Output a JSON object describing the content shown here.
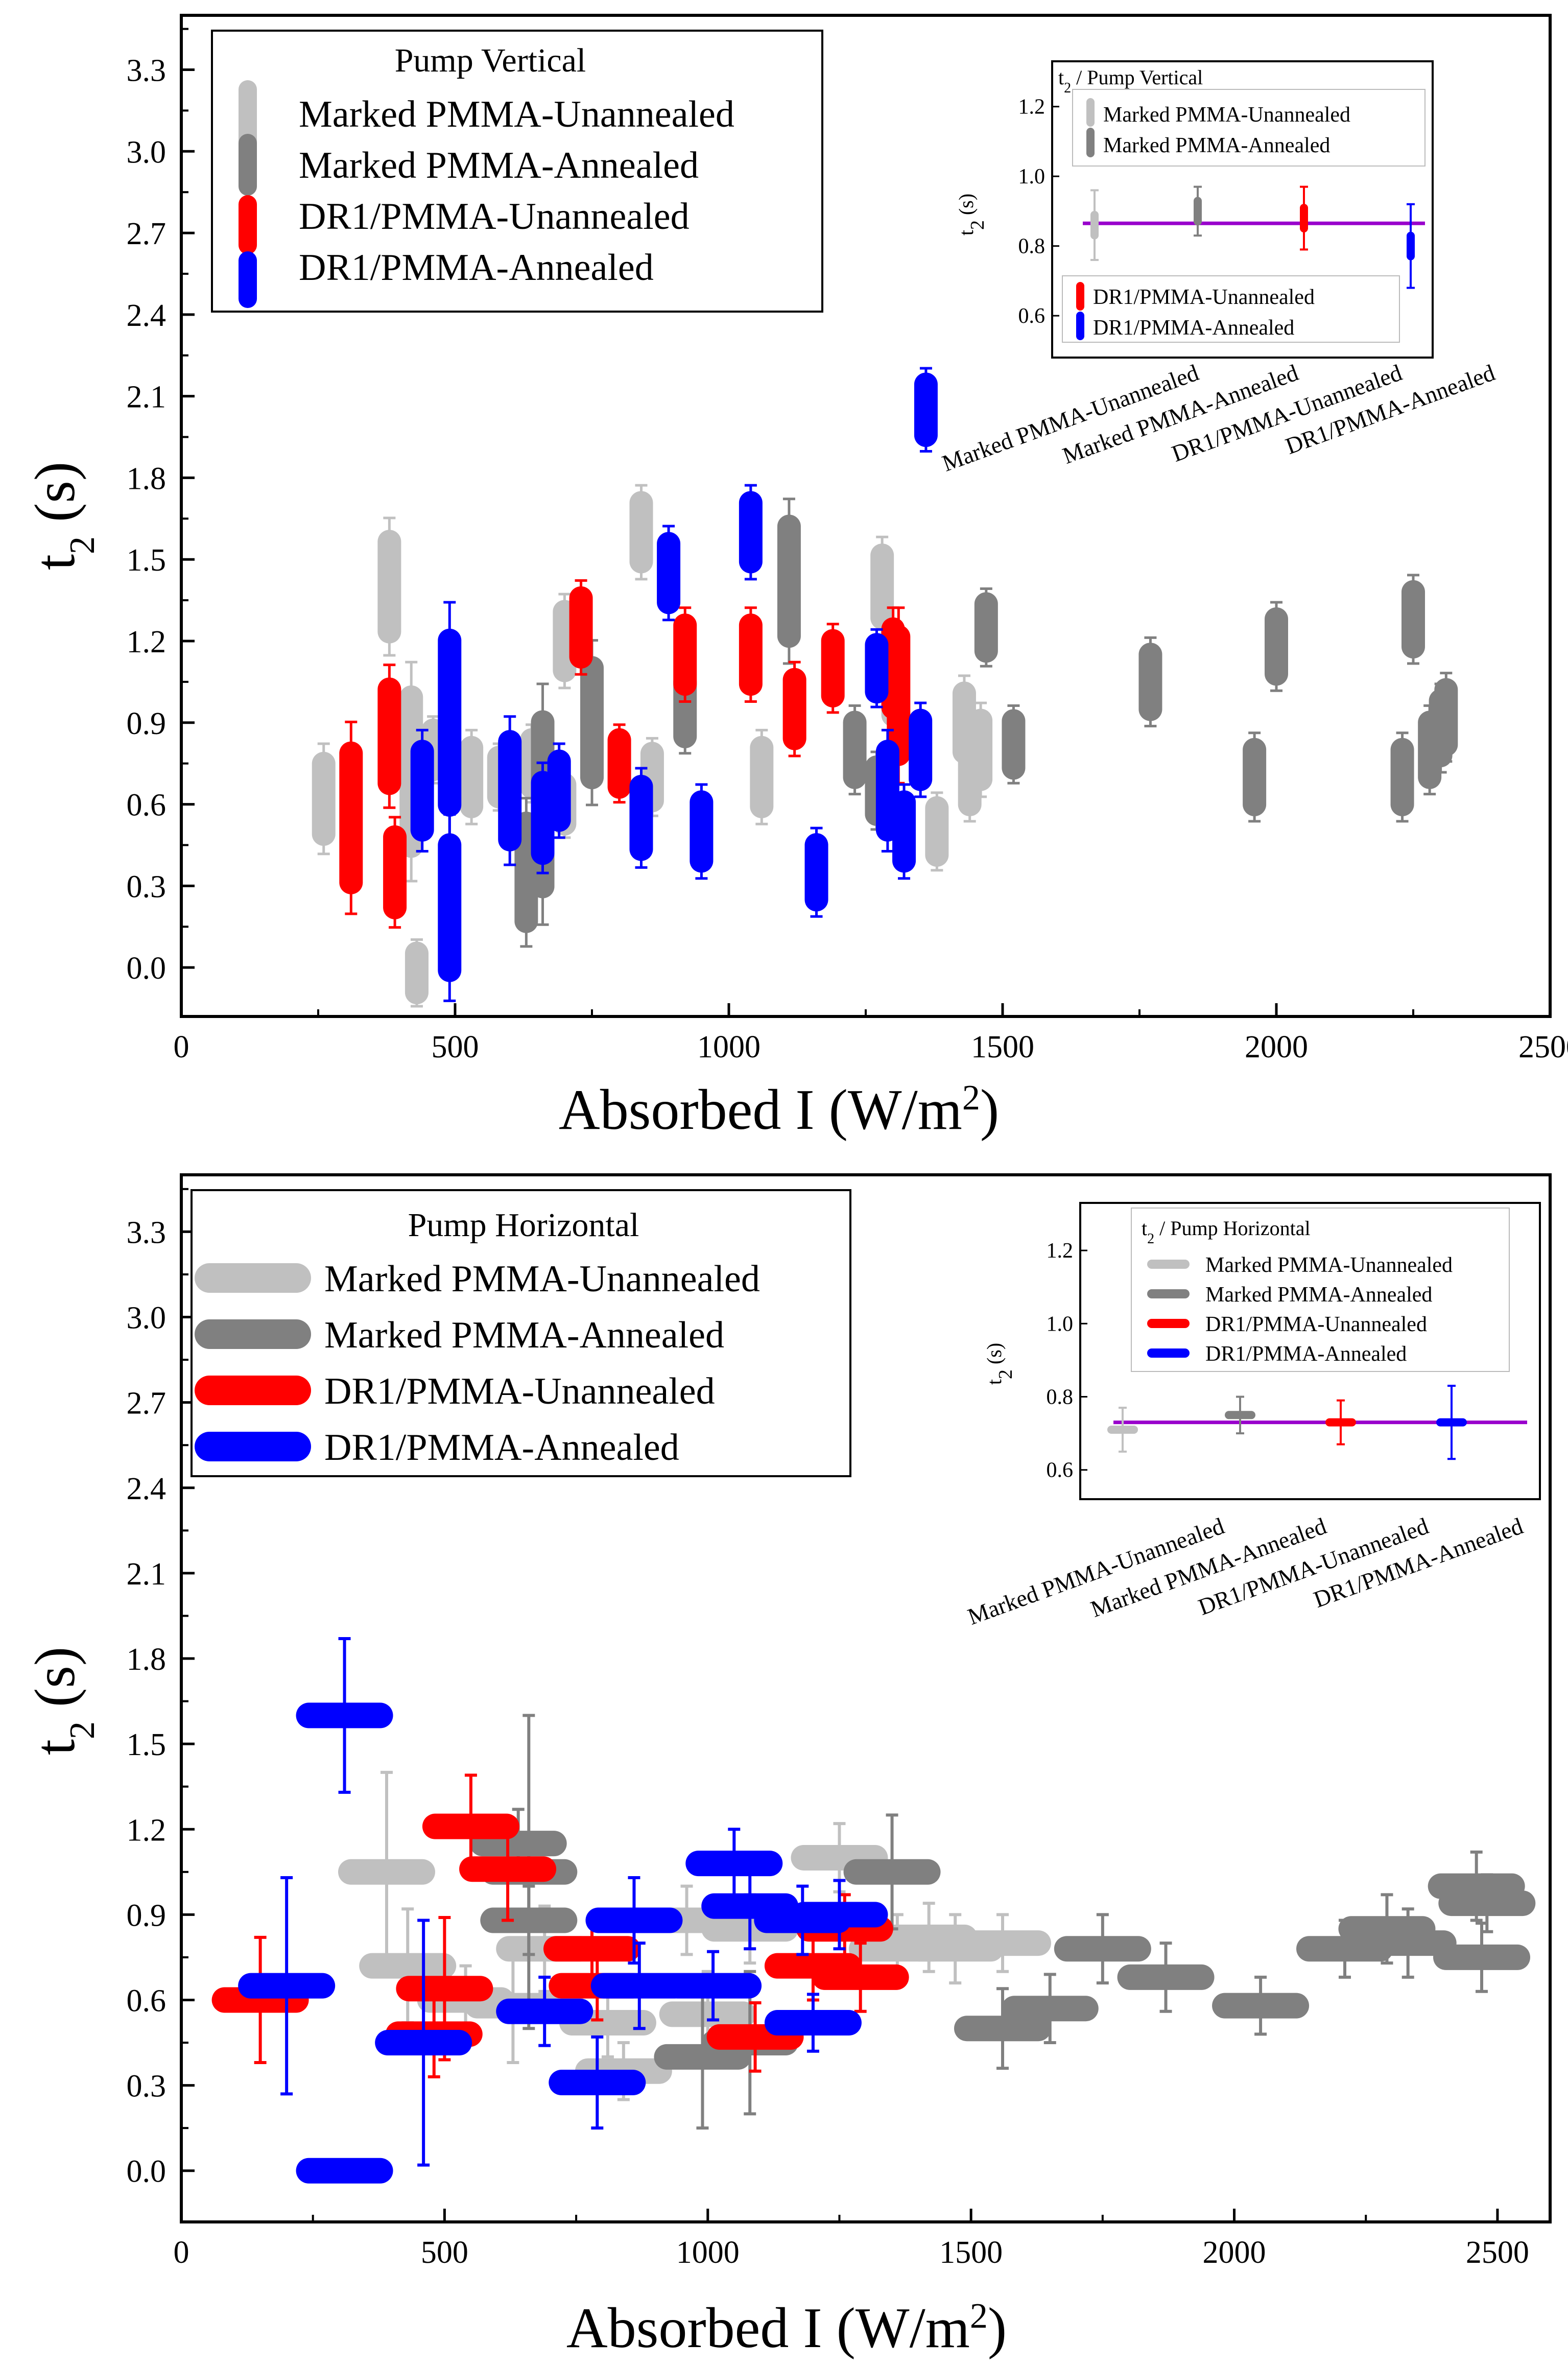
{
  "colors": {
    "light_gray": "#c0c0c0",
    "dark_gray": "#808080",
    "red": "#ff0000",
    "blue": "#0000ff",
    "fit_line": "#9900cc",
    "axis": "#000000"
  },
  "chart_data": [
    {
      "id": "top",
      "type": "scatter",
      "marker": "vertical-bar",
      "xlabel_main": "Absorbed I (W/m",
      "xlabel_sup": "2",
      "xlabel_end": ")",
      "ylabel_main": "t",
      "ylabel_sub": "2",
      "ylabel_end": " (s)",
      "xlim": [
        0,
        2500
      ],
      "ylim": [
        -0.18,
        3.5
      ],
      "xticks": [
        "0",
        "500",
        "1000",
        "1500",
        "2000",
        "2500"
      ],
      "yticks": [
        "0.0",
        "0.3",
        "0.6",
        "0.9",
        "1.2",
        "1.5",
        "1.8",
        "2.1",
        "2.4",
        "2.7",
        "3.0",
        "3.3"
      ],
      "legend": {
        "title": "Pump Vertical",
        "entries": [
          "Marked PMMA-Unannealed",
          "Marked PMMA-Annealed",
          "DR1/PMMA-Unannealed",
          "DR1/PMMA-Annealed"
        ]
      },
      "series": [
        {
          "name": "Marked PMMA-Unannealed",
          "color": "#c0c0c0",
          "points": [
            [
              260,
              0.62,
              0.18
            ],
            [
              380,
              1.4,
              0.23
            ],
            [
              420,
              0.72,
              0.38
            ],
            [
              430,
              -0.02,
              0.1
            ],
            [
              460,
              0.8,
              0.1
            ],
            [
              530,
              0.7,
              0.15
            ],
            [
              580,
              0.7,
              0.1
            ],
            [
              640,
              0.75,
              0.12
            ],
            [
              700,
              0.6,
              0.1
            ],
            [
              700,
              1.2,
              0.15
            ],
            [
              840,
              1.6,
              0.15
            ],
            [
              860,
              0.7,
              0.12
            ],
            [
              1060,
              0.7,
              0.15
            ],
            [
              1280,
              1.4,
              0.16
            ],
            [
              1300,
              1.0,
              0.1
            ],
            [
              1380,
              0.5,
              0.12
            ],
            [
              1430,
              0.9,
              0.15
            ],
            [
              1440,
              0.7,
              0.14
            ],
            [
              1460,
              0.8,
              0.15
            ]
          ]
        },
        {
          "name": "Marked PMMA-Annealed",
          "color": "#808080",
          "points": [
            [
              630,
              0.35,
              0.25
            ],
            [
              660,
              0.6,
              0.42
            ],
            [
              750,
              0.9,
              0.28
            ],
            [
              920,
              0.95,
              0.14
            ],
            [
              1110,
              1.42,
              0.28
            ],
            [
              1230,
              0.8,
              0.14
            ],
            [
              1270,
              0.65,
              0.12
            ],
            [
              1470,
              1.25,
              0.12
            ],
            [
              1520,
              0.82,
              0.12
            ],
            [
              1770,
              1.05,
              0.14
            ],
            [
              1960,
              0.7,
              0.14
            ],
            [
              2000,
              1.18,
              0.14
            ],
            [
              2230,
              0.7,
              0.14
            ],
            [
              2250,
              1.28,
              0.14
            ],
            [
              2280,
              0.8,
              0.14
            ],
            [
              2300,
              0.88,
              0.14
            ],
            [
              2310,
              0.92,
              0.14
            ]
          ]
        },
        {
          "name": "DR1/PMMA-Unannealed",
          "color": "#ff0000",
          "points": [
            [
              310,
              0.55,
              0.33
            ],
            [
              380,
              0.85,
              0.24
            ],
            [
              390,
              0.35,
              0.18
            ],
            [
              730,
              1.25,
              0.15
            ],
            [
              800,
              0.75,
              0.12
            ],
            [
              920,
              1.15,
              0.15
            ],
            [
              1040,
              1.15,
              0.15
            ],
            [
              1120,
              0.95,
              0.15
            ],
            [
              1190,
              1.1,
              0.14
            ],
            [
              1300,
              1.1,
              0.2
            ],
            [
              1310,
              1.0,
              0.3
            ]
          ]
        },
        {
          "name": "DR1/PMMA-Annealed",
          "color": "#0000ff",
          "points": [
            [
              440,
              0.65,
              0.2
            ],
            [
              490,
              0.22,
              0.32
            ],
            [
              490,
              0.9,
              0.42
            ],
            [
              600,
              0.65,
              0.25
            ],
            [
              660,
              0.55,
              0.18
            ],
            [
              690,
              0.65,
              0.15
            ],
            [
              840,
              0.55,
              0.16
            ],
            [
              890,
              1.45,
              0.15
            ],
            [
              950,
              0.5,
              0.15
            ],
            [
              1040,
              1.6,
              0.15
            ],
            [
              1160,
              0.35,
              0.14
            ],
            [
              1270,
              1.1,
              0.12
            ],
            [
              1290,
              0.65,
              0.2
            ],
            [
              1320,
              0.5,
              0.15
            ],
            [
              1350,
              0.8,
              0.15
            ],
            [
              1360,
              2.05,
              0.13
            ]
          ]
        }
      ],
      "inset": {
        "title_main": "t",
        "title_sub": "2",
        "title_end": " / Pump Vertical",
        "ylabel_main": "t",
        "ylabel_sub": "2",
        "ylabel_end": " (s)",
        "ylim": [
          0.48,
          1.33
        ],
        "yticks": [
          "0.6",
          "0.8",
          "1.0",
          "1.2"
        ],
        "categories": [
          "Marked PMMA-Unannealed",
          "Marked PMMA-Annealed",
          "DR1/PMMA-Unannealed",
          "DR1/PMMA-Annealed"
        ],
        "values": [
          0.86,
          0.9,
          0.88,
          0.8
        ],
        "errors": [
          0.1,
          0.07,
          0.09,
          0.12
        ],
        "fit_value": 0.865,
        "legend_a": [
          "Marked PMMA-Unannealed",
          "Marked PMMA-Annealed"
        ],
        "legend_b": [
          "DR1/PMMA-Unannealed",
          "DR1/PMMA-Annealed"
        ]
      }
    },
    {
      "id": "bottom",
      "type": "scatter",
      "marker": "horizontal-bar",
      "xlabel_main": "Absorbed I (W/m",
      "xlabel_sup": "2",
      "xlabel_end": ")",
      "ylabel_main": "t",
      "ylabel_sub": "2",
      "ylabel_end": " (s)",
      "xlim": [
        0,
        2600
      ],
      "ylim": [
        -0.18,
        3.5
      ],
      "xticks": [
        "0",
        "500",
        "1000",
        "1500",
        "2000",
        "2500"
      ],
      "yticks": [
        "0.0",
        "0.3",
        "0.6",
        "0.9",
        "1.2",
        "1.5",
        "1.8",
        "2.1",
        "2.4",
        "2.7",
        "3.0",
        "3.3"
      ],
      "legend": {
        "title": "Pump Horizontal",
        "entries": [
          "Marked PMMA-Unannealed",
          "Marked PMMA-Annealed",
          "DR1/PMMA-Unannealed",
          "DR1/PMMA-Annealed"
        ]
      },
      "series": [
        {
          "name": "Marked PMMA-Unannealed",
          "color": "#c0c0c0",
          "points": [
            [
              390,
              1.05,
              0.35
            ],
            [
              430,
              0.72,
              0.2
            ],
            [
              540,
              0.6,
              0.12
            ],
            [
              630,
              0.58,
              0.2
            ],
            [
              690,
              0.78,
              0.15
            ],
            [
              810,
              0.52,
              0.12
            ],
            [
              840,
              0.35,
              0.1
            ],
            [
              960,
              0.88,
              0.12
            ],
            [
              1000,
              0.55,
              0.15
            ],
            [
              1080,
              0.85,
              0.12
            ],
            [
              1250,
              1.1,
              0.12
            ],
            [
              1360,
              0.78,
              0.12
            ],
            [
              1420,
              0.82,
              0.12
            ],
            [
              1470,
              0.78,
              0.12
            ],
            [
              1560,
              0.8,
              0.1
            ]
          ]
        },
        {
          "name": "Marked PMMA-Annealed",
          "color": "#808080",
          "points": [
            [
              640,
              1.15,
              0.12
            ],
            [
              660,
              0.88,
              0.12
            ],
            [
              660,
              1.05,
              0.55
            ],
            [
              990,
              0.4,
              0.25
            ],
            [
              1080,
              0.45,
              0.25
            ],
            [
              1350,
              1.05,
              0.2
            ],
            [
              1560,
              0.5,
              0.14
            ],
            [
              1650,
              0.57,
              0.12
            ],
            [
              1750,
              0.78,
              0.12
            ],
            [
              1870,
              0.68,
              0.12
            ],
            [
              2050,
              0.58,
              0.1
            ],
            [
              2210,
              0.78,
              0.1
            ],
            [
              2290,
              0.85,
              0.12
            ],
            [
              2330,
              0.8,
              0.12
            ],
            [
              2460,
              1.0,
              0.12
            ],
            [
              2470,
              0.75,
              0.12
            ],
            [
              2480,
              0.94,
              0.1
            ]
          ]
        },
        {
          "name": "DR1/PMMA-Unannealed",
          "color": "#ff0000",
          "points": [
            [
              150,
              0.6,
              0.22
            ],
            [
              480,
              0.48,
              0.15
            ],
            [
              500,
              0.64,
              0.25
            ],
            [
              550,
              1.21,
              0.18
            ],
            [
              620,
              1.06,
              0.18
            ],
            [
              780,
              0.78,
              0.1
            ],
            [
              790,
              0.65,
              0.12
            ],
            [
              1090,
              0.47,
              0.12
            ],
            [
              1200,
              0.72,
              0.12
            ],
            [
              1260,
              0.85,
              0.12
            ],
            [
              1290,
              0.68,
              0.12
            ]
          ]
        },
        {
          "name": "DR1/PMMA-Annealed",
          "color": "#0000ff",
          "points": [
            [
              200,
              0.65,
              0.38
            ],
            [
              310,
              1.6,
              0.27
            ],
            [
              310,
              0.0,
              0.02
            ],
            [
              460,
              0.45,
              0.43
            ],
            [
              690,
              0.56,
              0.12
            ],
            [
              790,
              0.31,
              0.16
            ],
            [
              860,
              0.88,
              0.15
            ],
            [
              870,
              0.65,
              0.15
            ],
            [
              1010,
              0.65,
              0.12
            ],
            [
              1050,
              1.08,
              0.12
            ],
            [
              1080,
              0.93,
              0.15
            ],
            [
              1180,
              0.88,
              0.12
            ],
            [
              1200,
              0.52,
              0.1
            ],
            [
              1250,
              0.9,
              0.12
            ]
          ]
        }
      ],
      "inset": {
        "title_main": "t",
        "title_sub": "2",
        "title_end": " / Pump Horizontal",
        "ylabel_main": "t",
        "ylabel_sub": "2",
        "ylabel_end": " (s)",
        "ylim": [
          0.52,
          1.33
        ],
        "yticks": [
          "0.6",
          "0.8",
          "1.0",
          "1.2"
        ],
        "categories": [
          "Marked PMMA-Unannealed",
          "Marked PMMA-Annealed",
          "DR1/PMMA-Unannealed",
          "DR1/PMMA-Annealed"
        ],
        "values": [
          0.71,
          0.75,
          0.73,
          0.73
        ],
        "errors": [
          0.06,
          0.05,
          0.06,
          0.1
        ],
        "fit_value": 0.73,
        "legend_a": [
          "Marked PMMA-Unannealed",
          "Marked PMMA-Annealed",
          "DR1/PMMA-Unannealed",
          "DR1/PMMA-Annealed"
        ],
        "legend_b": []
      }
    }
  ]
}
